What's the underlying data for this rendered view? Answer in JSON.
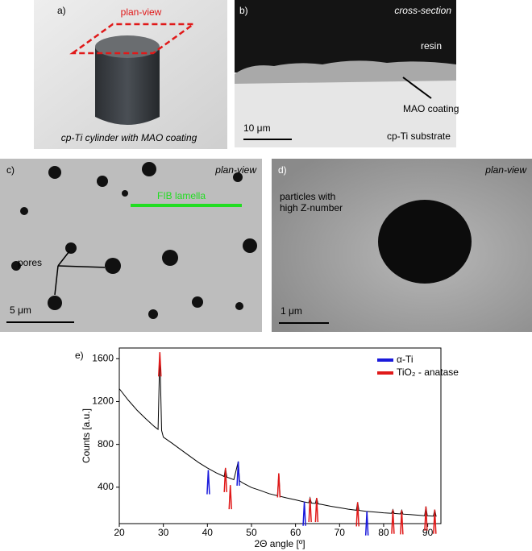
{
  "panels": {
    "a": {
      "label": "a)",
      "view": "plan-view",
      "caption": "cp-Ti cylinder with MAO coating"
    },
    "b": {
      "label": "b)",
      "view": "cross-section",
      "resin": "resin",
      "coating": "MAO coating",
      "scale": "10 μm",
      "substrate": "cp-Ti substrate"
    },
    "c": {
      "label": "c)",
      "view": "plan-view",
      "lamella": "FIB lamella",
      "pores": "pores",
      "scale": "5 μm"
    },
    "d": {
      "label": "d)",
      "view": "plan-view",
      "particles": [
        "particles with",
        "high Z-number"
      ],
      "scale": "1 μm"
    }
  },
  "chart_data": {
    "type": "line",
    "label": "e)",
    "x_label": "2Θ angle [º]",
    "y_label": "Counts [a.u.]",
    "color": "#000000",
    "x": [
      20,
      22,
      24,
      26,
      28,
      28.8,
      29.2,
      29.6,
      30,
      32,
      34,
      36,
      38,
      40,
      42,
      43.8,
      44.1,
      44.4,
      46,
      47,
      47.3,
      48,
      50,
      52,
      54,
      55.9,
      56.2,
      56.5,
      58,
      60,
      62,
      63,
      63.3,
      63.6,
      64.5,
      64.8,
      65.1,
      66,
      68,
      70,
      72,
      73.8,
      74.1,
      74.4,
      76,
      78,
      80,
      81.8,
      82.1,
      82.4,
      83.8,
      84.1,
      84.4,
      86,
      88,
      89.3,
      89.6,
      89.9,
      91.3,
      91.6,
      91.9,
      92
    ],
    "values": [
      1320,
      1215,
      1120,
      1040,
      965,
      940,
      1660,
      930,
      867,
      810,
      750,
      690,
      630,
      580,
      535,
      500,
      580,
      495,
      470,
      640,
      460,
      440,
      397,
      370,
      340,
      320,
      530,
      315,
      300,
      282,
      262,
      255,
      300,
      252,
      248,
      300,
      244,
      238,
      222,
      208,
      195,
      185,
      260,
      183,
      175,
      168,
      161,
      156,
      190,
      155,
      150,
      185,
      149,
      145,
      138,
      134,
      220,
      133,
      130,
      190,
      129,
      128
    ],
    "series": [
      {
        "name": "α-Ti",
        "color": "#1a1adb",
        "x": [
          40.2,
          47.0,
          62.0,
          76.2
        ],
        "values": [
          560,
          640,
          265,
          175
        ]
      },
      {
        "name": "TiO₂ - anatase",
        "color": "#e01919",
        "x": [
          29.2,
          44.1,
          45.2,
          56.2,
          63.3,
          64.8,
          74.1,
          82.1,
          84.1,
          89.6,
          91.6
        ],
        "values": [
          1660,
          580,
          420,
          530,
          300,
          300,
          260,
          190,
          185,
          220,
          190
        ]
      }
    ],
    "xlim": [
      20,
      93
    ],
    "ylim": [
      60,
      1700
    ],
    "xticks": [
      20,
      30,
      40,
      50,
      60,
      70,
      80,
      90
    ],
    "yticks": [
      400,
      800,
      1200,
      1600
    ]
  }
}
